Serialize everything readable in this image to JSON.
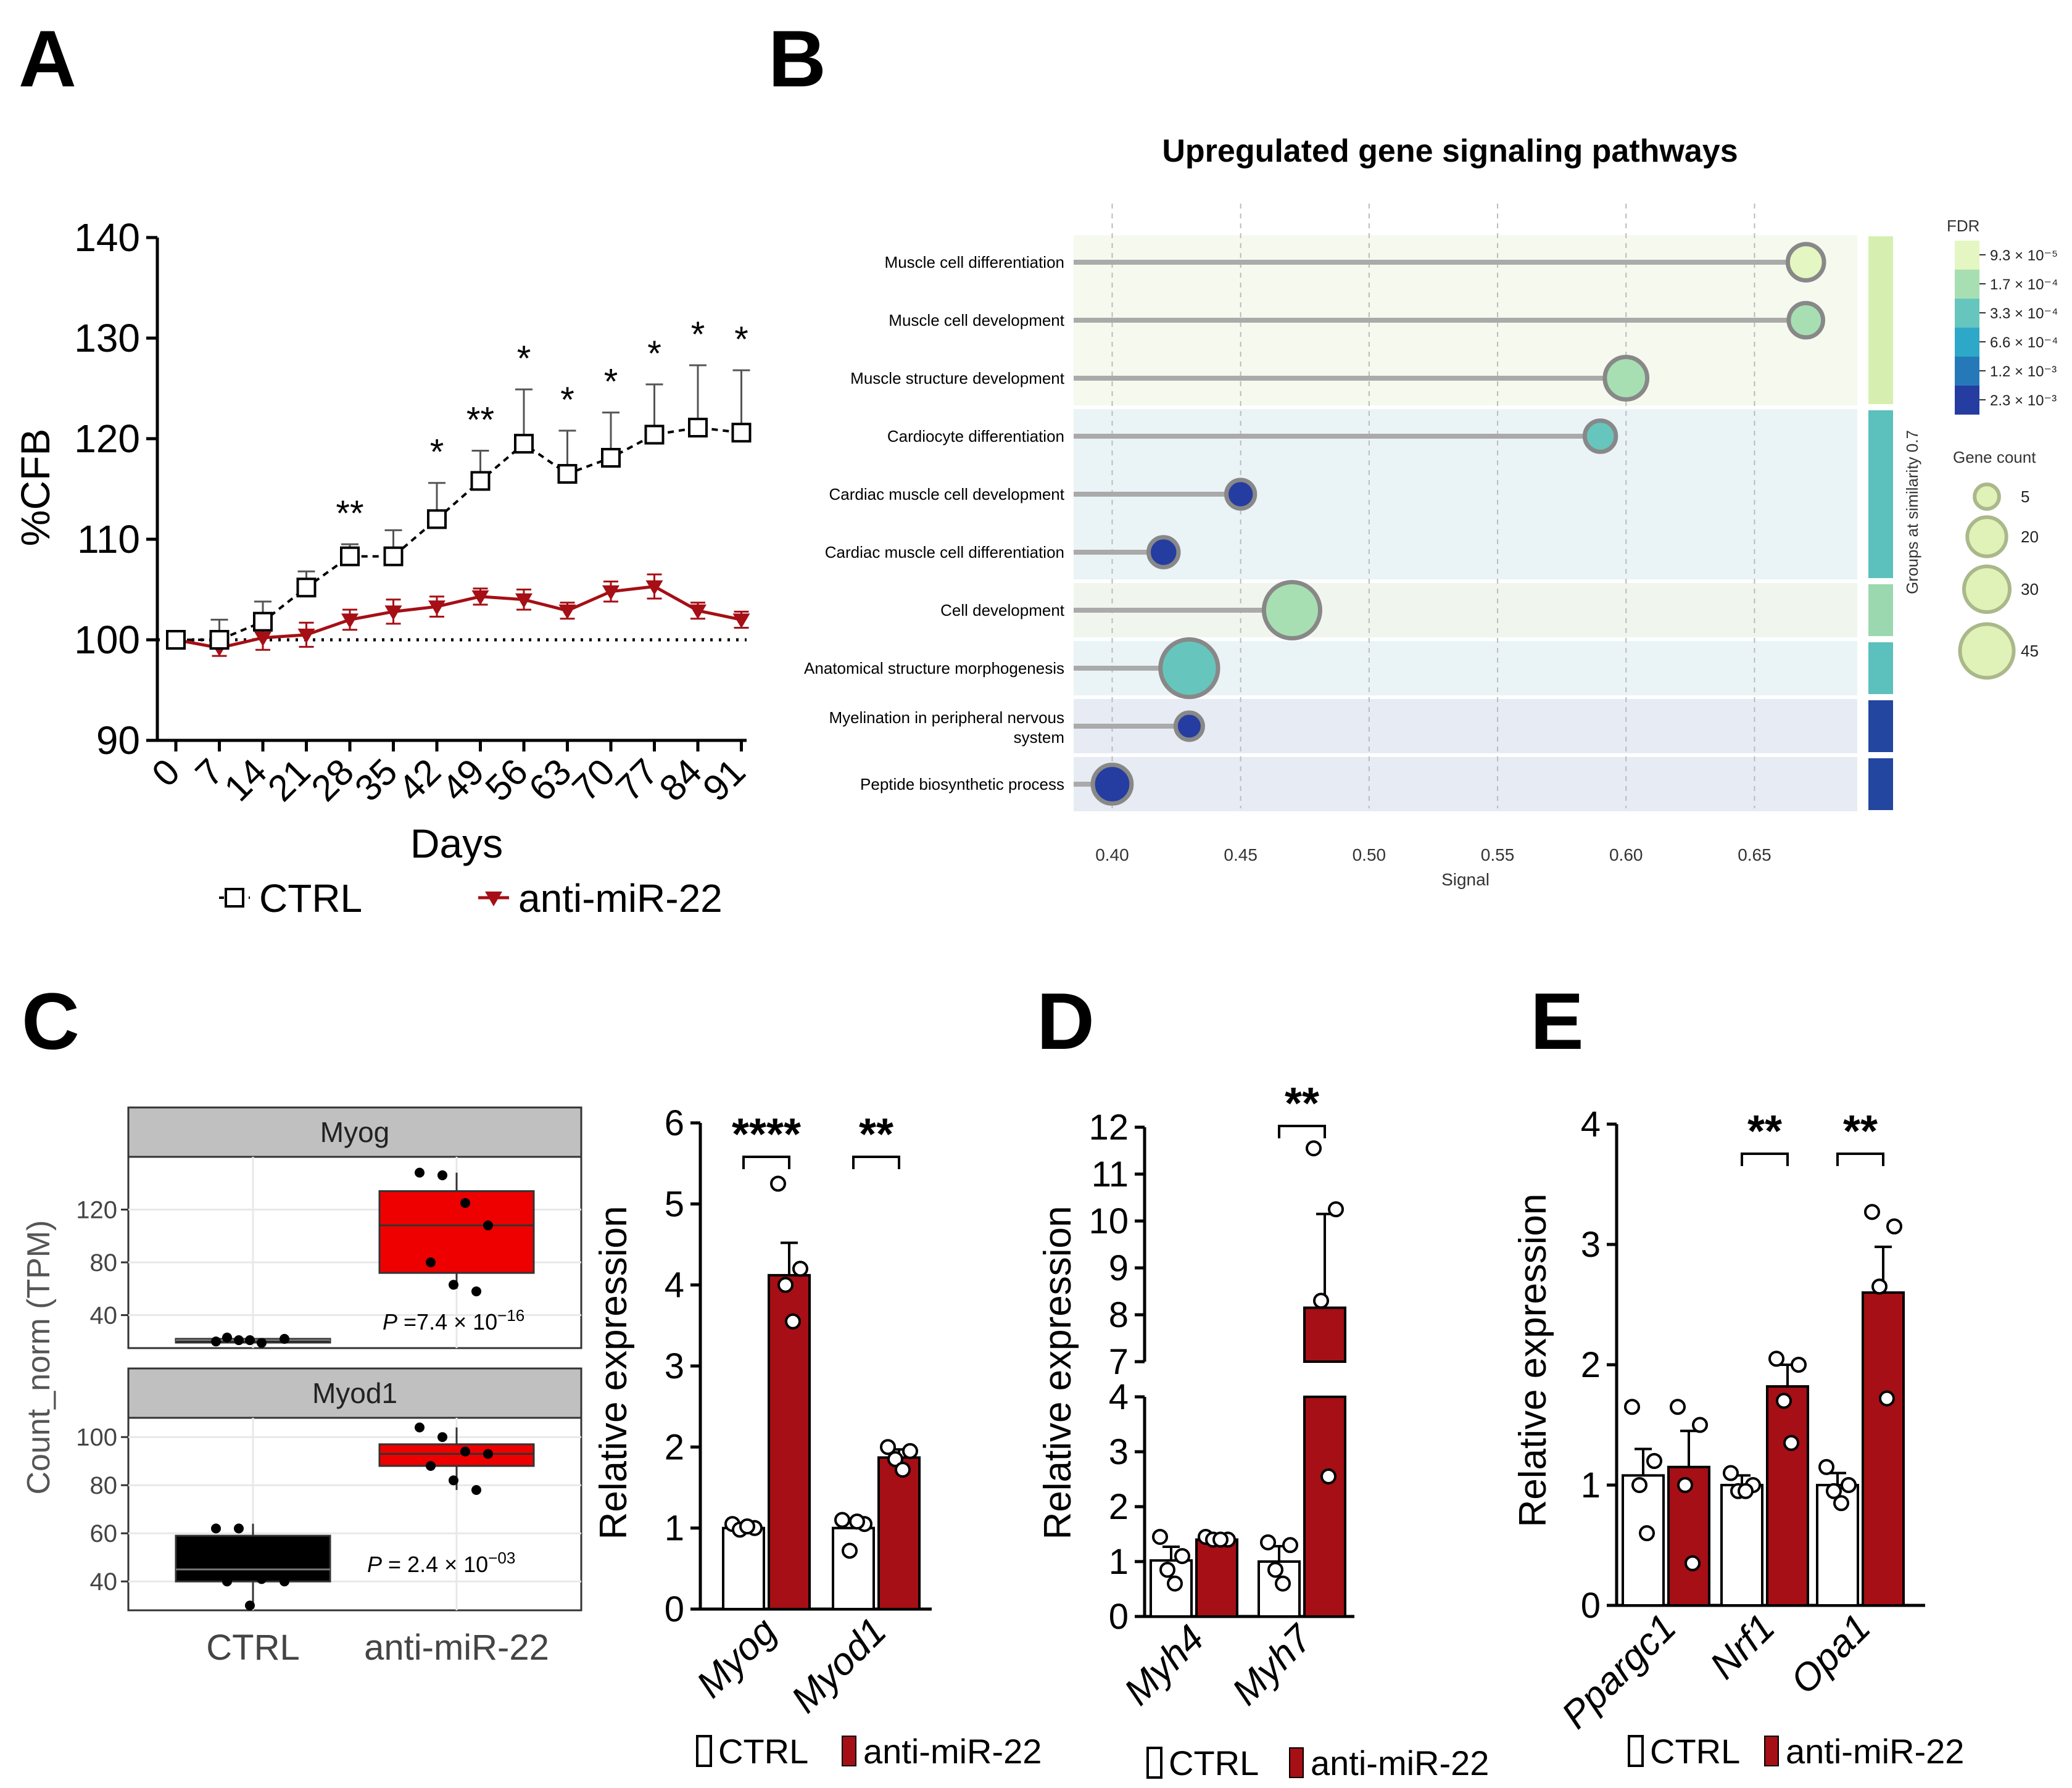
{
  "colors": {
    "ctrl_fill": "#ffffff",
    "treated": "#a50f15",
    "box_red": "#ee0000",
    "box_black": "#000000",
    "facet_strip": "#c0c0c0",
    "lollipop": "#aaaaaa",
    "axis": "#000000"
  },
  "panel_labels": [
    "A",
    "B",
    "C",
    "D",
    "E"
  ],
  "legend": {
    "ctrl": "CTRL",
    "treated": "anti-miR-22"
  },
  "chart_data": [
    {
      "id": "A",
      "type": "line",
      "xlabel": "Days",
      "ylabel": "%CFB",
      "x": [
        0,
        7,
        14,
        21,
        28,
        35,
        42,
        49,
        56,
        63,
        70,
        77,
        84,
        91
      ],
      "ylim": [
        90,
        140
      ],
      "yticks": [
        90,
        100,
        110,
        120,
        130,
        140
      ],
      "reference_line": 100,
      "series": [
        {
          "name": "CTRL",
          "values": [
            100,
            100,
            101.8,
            105.2,
            108.3,
            108.3,
            112,
            115.8,
            119.5,
            116.5,
            118.1,
            120.4,
            121.1,
            120.6
          ],
          "error": [
            0,
            2.0,
            2.0,
            1.6,
            1.2,
            2.6,
            3.6,
            3.0,
            5.4,
            4.3,
            4.5,
            5.0,
            6.2,
            6.2
          ]
        },
        {
          "name": "anti-miR-22",
          "values": [
            100,
            99.2,
            100.2,
            100.5,
            102.0,
            102.8,
            103.3,
            104.3,
            104.0,
            102.9,
            104.8,
            105.3,
            102.9,
            102.0
          ],
          "error": [
            0,
            0.8,
            1.2,
            1.2,
            1.0,
            1.2,
            1.0,
            0.8,
            1.0,
            0.8,
            1.0,
            1.2,
            0.8,
            0.8
          ]
        }
      ],
      "significance": [
        "",
        "",
        "",
        "",
        "**",
        "",
        "*",
        "**",
        "*",
        "*",
        "*",
        "*",
        "*",
        "*"
      ]
    },
    {
      "id": "B",
      "type": "scatter",
      "title": "Upregulated gene signaling pathways",
      "xlabel": "Signal",
      "xlim": [
        0.385,
        0.69
      ],
      "xticks": [
        "0.40",
        "0.45",
        "0.50",
        "0.55",
        "0.60",
        "0.65"
      ],
      "group_label": "Groups at similarity 0.7",
      "pathways": [
        {
          "name": "Muscle cell differentiation",
          "signal": 0.67,
          "fdr": "9.3e-5",
          "genes": 12,
          "group": 1
        },
        {
          "name": "Muscle cell development",
          "signal": 0.67,
          "fdr": "1.7e-4",
          "genes": 10,
          "group": 1
        },
        {
          "name": "Muscle structure development",
          "signal": 0.6,
          "fdr": "1.7e-4",
          "genes": 20,
          "group": 1
        },
        {
          "name": "Cardiocyte differentiation",
          "signal": 0.59,
          "fdr": "3.3e-4",
          "genes": 7,
          "group": 2
        },
        {
          "name": "Cardiac muscle cell development",
          "signal": 0.45,
          "fdr": "2.3e-3",
          "genes": 5,
          "group": 2
        },
        {
          "name": "Cardiac muscle cell differentiation",
          "signal": 0.42,
          "fdr": "2.3e-3",
          "genes": 6,
          "group": 2
        },
        {
          "name": "Cell development",
          "signal": 0.47,
          "fdr": "1.7e-4",
          "genes": 45,
          "group": 3
        },
        {
          "name": "Anatomical structure morphogenesis",
          "signal": 0.43,
          "fdr": "3.3e-4",
          "genes": 48,
          "group": 4
        },
        {
          "name": "Myelination in peripheral nervous system",
          "signal": 0.43,
          "fdr": "2.3e-3",
          "genes": 4,
          "group": 5
        },
        {
          "name": "Peptide biosynthetic process",
          "signal": 0.4,
          "fdr": "2.3e-3",
          "genes": 15,
          "group": 6
        }
      ],
      "fdr_legend": {
        "title": "FDR",
        "labels": [
          "9.3 × 10⁻⁵",
          "1.7 × 10⁻⁴",
          "3.3 × 10⁻⁴",
          "6.6 × 10⁻⁴",
          "1.2 × 10⁻³",
          "2.3 × 10⁻³"
        ],
        "colors": [
          "#e4f6c2",
          "#a7dfb2",
          "#66c6bd",
          "#2ea8c8",
          "#2579b8",
          "#253da0"
        ]
      },
      "size_legend": {
        "title": "Gene count",
        "values": [
          "5",
          "20",
          "30",
          "45"
        ]
      }
    },
    {
      "id": "C-box",
      "type": "box",
      "ylabel": "Count_norm (TPM)",
      "categories": [
        "CTRL",
        "anti-miR-22"
      ],
      "facets": [
        {
          "name": "Myog",
          "yticks": [
            "40",
            "80",
            "120"
          ],
          "ylim": [
            15,
            160
          ],
          "p_prefix": "P",
          "p_value": " =7.4 × 10",
          "p_exp": "−16",
          "boxes": [
            {
              "q1": 20,
              "median": 21,
              "q3": 22,
              "whisker_low": 19,
              "whisker_high": 23
            },
            {
              "q1": 72,
              "median": 108,
              "q3": 134,
              "whisker_low": 60,
              "whisker_high": 148
            }
          ],
          "points": [
            [
              20,
              21,
              19,
              22,
              23,
              21
            ],
            [
              148,
              146,
              125,
              108,
              80,
              63,
              58
            ]
          ]
        },
        {
          "name": "Myod1",
          "yticks": [
            "40",
            "60",
            "80",
            "100"
          ],
          "ylim": [
            28,
            108
          ],
          "p_prefix": "P",
          "p_value": " = 2.4 × 10",
          "p_exp": "−03",
          "boxes": [
            {
              "q1": 40,
              "median": 45,
              "q3": 59,
              "whisker_low": 30,
              "whisker_high": 64
            },
            {
              "q1": 88,
              "median": 93,
              "q3": 97,
              "whisker_low": 78,
              "whisker_high": 104
            }
          ],
          "points": [
            [
              62,
              62,
              41,
              40,
              40,
              30
            ],
            [
              104,
              100,
              94,
              93,
              88,
              82,
              78
            ]
          ]
        }
      ]
    },
    {
      "id": "C-bar",
      "type": "bar",
      "ylabel": "Relative  expression",
      "categories": [
        "Myog",
        "Myod1"
      ],
      "ylim": [
        0,
        6
      ],
      "yticks": [
        "0",
        "1",
        "2",
        "3",
        "4",
        "5",
        "6"
      ],
      "series": [
        {
          "name": "CTRL",
          "values": [
            1.0,
            1.0
          ],
          "error": [
            0.05,
            0.12
          ],
          "points": [
            [
              1.05,
              1.0,
              0.98,
              1.02
            ],
            [
              1.1,
              1.05,
              0.72,
              1.08
            ]
          ]
        },
        {
          "name": "anti-miR-22",
          "values": [
            4.12,
            1.87
          ],
          "error": [
            0.4,
            0.1
          ],
          "points": [
            [
              5.25,
              4.2,
              4.0,
              3.55
            ],
            [
              2.0,
              1.95,
              1.85,
              1.72
            ]
          ]
        }
      ],
      "significance": [
        "****",
        "**"
      ]
    },
    {
      "id": "D",
      "type": "bar",
      "ylabel": "Relative expression",
      "categories": [
        "Myh4",
        "Myh7"
      ],
      "axis_break": [
        4,
        7
      ],
      "yticks_lower": [
        "0",
        "1",
        "2",
        "3",
        "4"
      ],
      "yticks_upper": [
        "7",
        "8",
        "9",
        "10",
        "11",
        "12"
      ],
      "series": [
        {
          "name": "CTRL",
          "values": [
            1.02,
            1.0
          ],
          "error": [
            0.25,
            0.28
          ],
          "points": [
            [
              1.45,
              1.1,
              0.85,
              0.6
            ],
            [
              1.35,
              1.3,
              0.85,
              0.6
            ]
          ]
        },
        {
          "name": "anti-miR-22",
          "values": [
            1.4,
            8.15
          ],
          "error": [
            0.1,
            2.0
          ],
          "points": [
            [
              1.45,
              1.4,
              1.4,
              1.4
            ],
            [
              11.55,
              10.25,
              8.3,
              2.55
            ]
          ]
        }
      ],
      "significance": [
        "",
        "**"
      ]
    },
    {
      "id": "E",
      "type": "bar",
      "ylabel": "Relative expression",
      "categories": [
        "Ppargc1",
        "Nrf1",
        "Opa1"
      ],
      "ylim": [
        0,
        4
      ],
      "yticks": [
        "0",
        "1",
        "2",
        "3",
        "4"
      ],
      "series": [
        {
          "name": "CTRL",
          "values": [
            1.08,
            1.0,
            1.0
          ],
          "error": [
            0.22,
            0.08,
            0.1
          ],
          "points": [
            [
              1.65,
              1.2,
              1.0,
              0.6
            ],
            [
              1.1,
              1.0,
              0.95,
              0.95
            ],
            [
              1.15,
              1.0,
              0.95,
              0.85
            ]
          ]
        },
        {
          "name": "anti-miR-22",
          "values": [
            1.15,
            1.82,
            2.6
          ],
          "error": [
            0.3,
            0.18,
            0.38
          ],
          "points": [
            [
              1.65,
              1.5,
              1.0,
              0.35
            ],
            [
              2.05,
              2.0,
              1.7,
              1.35
            ],
            [
              3.27,
              3.15,
              2.65,
              1.72
            ]
          ]
        }
      ],
      "significance": [
        "",
        "**",
        "**"
      ]
    }
  ]
}
